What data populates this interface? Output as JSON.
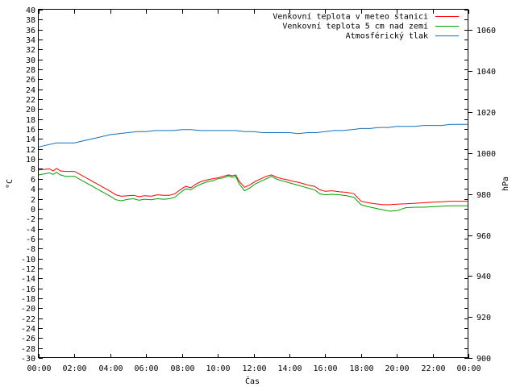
{
  "chart_data": {
    "type": "line",
    "xlabel": "Čas",
    "ylabel": "°C",
    "y2label": "hPa",
    "x_ticks": [
      "00:00",
      "02:00",
      "04:00",
      "06:00",
      "08:00",
      "10:00",
      "12:00",
      "14:00",
      "16:00",
      "18:00",
      "20:00",
      "22:00",
      "00:00"
    ],
    "x_range_hours": [
      0,
      24
    ],
    "ylim": [
      -30,
      40
    ],
    "y_step": 2,
    "y2lim": [
      900,
      1070
    ],
    "y2_ticks": [
      900,
      920,
      940,
      960,
      980,
      1000,
      1020,
      1040,
      1060
    ],
    "legend_position": "top-right",
    "series": [
      {
        "name": "Venkovní teplota v meteo stanici",
        "color": "#ff0000",
        "axis": "left",
        "x": [
          0,
          0.3,
          0.6,
          0.8,
          1.0,
          1.2,
          1.5,
          2.0,
          2.5,
          3.0,
          3.5,
          4.0,
          4.3,
          4.6,
          5.0,
          5.3,
          5.6,
          5.9,
          6.3,
          6.6,
          7.0,
          7.3,
          7.6,
          7.9,
          8.2,
          8.5,
          8.8,
          9.1,
          9.4,
          9.7,
          10.0,
          10.3,
          10.6,
          10.8,
          11.0,
          11.2,
          11.5,
          11.8,
          12.1,
          12.4,
          12.7,
          13.0,
          13.3,
          13.6,
          13.9,
          14.2,
          14.5,
          14.8,
          15.1,
          15.4,
          15.7,
          16.0,
          16.4,
          16.8,
          17.2,
          17.6,
          18.0,
          18.4,
          18.8,
          19.2,
          19.6,
          20.0,
          20.5,
          21.0,
          21.5,
          22.0,
          22.5,
          23.0,
          23.5,
          24.0
        ],
        "values": [
          7.8,
          7.9,
          8.0,
          7.6,
          8.1,
          7.6,
          7.5,
          7.5,
          6.5,
          5.5,
          4.5,
          3.5,
          2.8,
          2.5,
          2.6,
          2.7,
          2.4,
          2.6,
          2.5,
          2.8,
          2.7,
          2.7,
          3.0,
          3.8,
          4.5,
          4.2,
          5.0,
          5.5,
          5.8,
          6.0,
          6.2,
          6.5,
          6.8,
          6.6,
          6.8,
          5.5,
          4.3,
          4.8,
          5.5,
          6.0,
          6.5,
          6.8,
          6.3,
          6.0,
          5.8,
          5.5,
          5.3,
          5.0,
          4.7,
          4.5,
          3.8,
          3.5,
          3.6,
          3.4,
          3.3,
          3.0,
          1.5,
          1.2,
          1.0,
          0.8,
          0.8,
          0.9,
          1.0,
          1.1,
          1.2,
          1.3,
          1.4,
          1.5,
          1.5,
          1.5
        ]
      },
      {
        "name": "Venkovní teplota 5 cm nad zemí",
        "color": "#00a000",
        "axis": "left",
        "x": [
          0,
          0.3,
          0.6,
          0.8,
          1.0,
          1.2,
          1.5,
          2.0,
          2.5,
          3.0,
          3.5,
          4.0,
          4.3,
          4.6,
          5.0,
          5.3,
          5.6,
          5.9,
          6.3,
          6.6,
          7.0,
          7.3,
          7.6,
          7.9,
          8.2,
          8.5,
          8.8,
          9.1,
          9.4,
          9.7,
          10.0,
          10.3,
          10.6,
          10.8,
          11.0,
          11.2,
          11.5,
          11.8,
          12.1,
          12.4,
          12.7,
          13.0,
          13.3,
          13.6,
          13.9,
          14.2,
          14.5,
          14.8,
          15.1,
          15.4,
          15.7,
          16.0,
          16.4,
          16.8,
          17.2,
          17.6,
          18.0,
          18.4,
          18.8,
          19.2,
          19.6,
          20.0,
          20.5,
          21.0,
          21.5,
          22.0,
          22.5,
          23.0,
          23.5,
          24.0
        ],
        "values": [
          6.8,
          7.0,
          7.2,
          6.9,
          7.3,
          6.8,
          6.5,
          6.5,
          5.5,
          4.5,
          3.5,
          2.5,
          1.8,
          1.6,
          1.9,
          2.0,
          1.7,
          1.9,
          1.8,
          2.0,
          1.9,
          2.0,
          2.3,
          3.2,
          4.0,
          3.8,
          4.5,
          5.0,
          5.4,
          5.6,
          6.0,
          6.2,
          6.6,
          6.3,
          6.5,
          5.0,
          3.6,
          4.2,
          5.0,
          5.5,
          6.0,
          6.5,
          5.9,
          5.6,
          5.3,
          5.0,
          4.7,
          4.4,
          4.1,
          3.8,
          3.0,
          2.8,
          2.9,
          2.8,
          2.6,
          2.3,
          0.8,
          0.4,
          0.1,
          -0.2,
          -0.5,
          -0.4,
          0.2,
          0.3,
          0.3,
          0.4,
          0.5,
          0.6,
          0.6,
          0.6
        ]
      },
      {
        "name": "Atmosférický tlak",
        "color": "#1070c0",
        "axis": "right",
        "x": [
          0,
          0.5,
          1.0,
          1.5,
          2.0,
          2.5,
          3.0,
          3.5,
          4.0,
          4.5,
          5.0,
          5.5,
          6.0,
          6.5,
          7.0,
          7.5,
          8.0,
          8.5,
          9.0,
          9.5,
          10.0,
          10.5,
          11.0,
          11.5,
          12.0,
          12.5,
          13.0,
          13.5,
          14.0,
          14.5,
          15.0,
          15.5,
          16.0,
          16.5,
          17.0,
          17.5,
          18.0,
          18.5,
          19.0,
          19.5,
          20.0,
          20.5,
          21.0,
          21.5,
          22.0,
          22.5,
          23.0,
          23.5,
          24.0
        ],
        "values": [
          1003,
          1004,
          1005,
          1005,
          1005,
          1006,
          1007,
          1008,
          1009,
          1009.5,
          1010,
          1010.5,
          1010.5,
          1011,
          1011,
          1011,
          1011.5,
          1011.5,
          1011,
          1011,
          1011,
          1011,
          1011,
          1010.5,
          1010.5,
          1010,
          1010,
          1010,
          1010,
          1009.5,
          1010,
          1010,
          1010.5,
          1011,
          1011,
          1011.5,
          1012,
          1012,
          1012.5,
          1012.5,
          1013,
          1013,
          1013,
          1013.5,
          1013.5,
          1013.5,
          1014,
          1014,
          1014
        ]
      }
    ]
  }
}
